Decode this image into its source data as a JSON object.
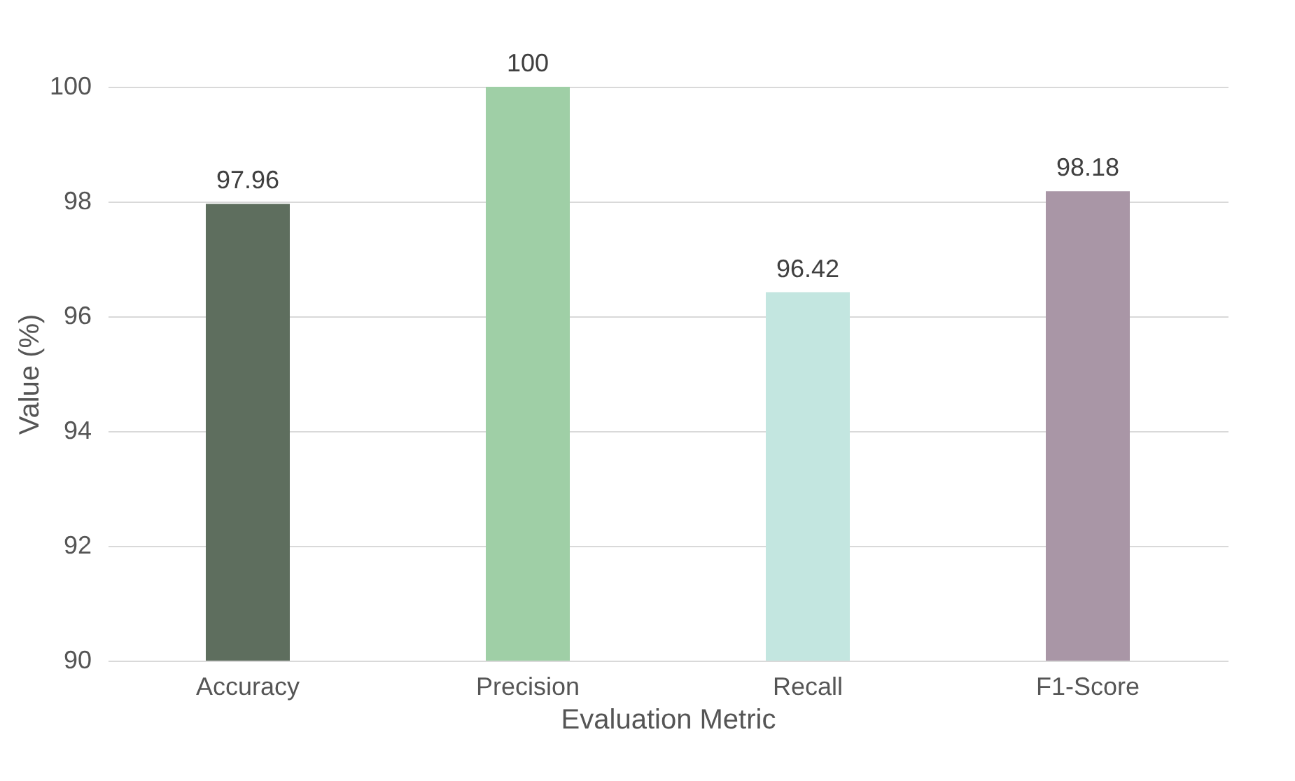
{
  "chart_data": {
    "type": "bar",
    "xlabel": "Evaluation Metric",
    "ylabel": "Value (%)",
    "categories": [
      "Accuracy",
      "Precision",
      "Recall",
      "F1-Score"
    ],
    "values": [
      97.96,
      100,
      96.42,
      98.18
    ],
    "colors": [
      "#5e6e5e",
      "#9fcfa6",
      "#c3e6e0",
      "#a996a6"
    ],
    "ylim": [
      90,
      100
    ],
    "yticks": [
      90,
      92,
      94,
      96,
      98,
      100
    ],
    "grid": "y",
    "data_labels": true
  }
}
